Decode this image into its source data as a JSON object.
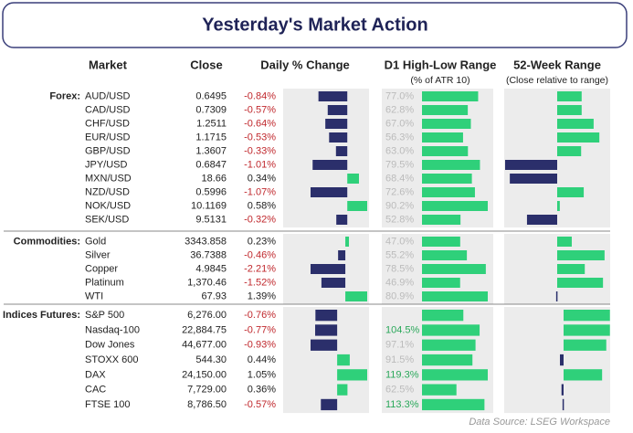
{
  "header": {
    "title": "Yesterday's Market Action"
  },
  "columns": {
    "market": "Market",
    "close": "Close",
    "daily": "Daily % Change",
    "d1": "D1 High-Low Range",
    "d1_sub": "(% of ATR 10)",
    "w52": "52-Week Range",
    "w52_sub": "(Close relative to range)"
  },
  "groups": [
    {
      "label": "Forex:",
      "rows": [
        {
          "market": "AUD/USD",
          "close": "0.6495",
          "change": -0.84,
          "change_label": "-0.84%",
          "d1": 77.0,
          "d1_label": "77.0%",
          "w52": 0.47
        },
        {
          "market": "CAD/USD",
          "close": "0.7309",
          "change": -0.57,
          "change_label": "-0.57%",
          "d1": 62.8,
          "d1_label": "62.8%",
          "w52": 0.47
        },
        {
          "market": "CHF/USD",
          "close": "1.2511",
          "change": -0.64,
          "change_label": "-0.64%",
          "d1": 67.0,
          "d1_label": "67.0%",
          "w52": 0.7
        },
        {
          "market": "EUR/USD",
          "close": "1.1715",
          "change": -0.53,
          "change_label": "-0.53%",
          "d1": 56.3,
          "d1_label": "56.3%",
          "w52": 0.81
        },
        {
          "market": "GBP/USD",
          "close": "1.3607",
          "change": -0.33,
          "change_label": "-0.33%",
          "d1": 63.0,
          "d1_label": "63.0%",
          "w52": 0.46
        },
        {
          "market": "JPY/USD",
          "close": "0.6847",
          "change": -1.01,
          "change_label": "-1.01%",
          "d1": 79.5,
          "d1_label": "79.5%",
          "w52": -1.0
        },
        {
          "market": "MXN/USD",
          "close": "18.66",
          "change": 0.34,
          "change_label": "0.34%",
          "d1": 68.4,
          "d1_label": "68.4%",
          "w52": -0.91
        },
        {
          "market": "NZD/USD",
          "close": "0.5996",
          "change": -1.07,
          "change_label": "-1.07%",
          "d1": 72.6,
          "d1_label": "72.6%",
          "w52": 0.51
        },
        {
          "market": "NOK/USD",
          "close": "10.1169",
          "change": 0.58,
          "change_label": "0.58%",
          "d1": 90.2,
          "d1_label": "90.2%",
          "w52": 0.05
        },
        {
          "market": "SEK/USD",
          "close": "9.5131",
          "change": -0.32,
          "change_label": "-0.32%",
          "d1": 52.8,
          "d1_label": "52.8%",
          "w52": -0.58
        }
      ]
    },
    {
      "label": "Commodities:",
      "rows": [
        {
          "market": "Gold",
          "close": "3343.858",
          "change": 0.23,
          "change_label": "0.23%",
          "d1": 47.0,
          "d1_label": "47.0%",
          "w52": 0.28
        },
        {
          "market": "Silver",
          "close": "36.7388",
          "change": -0.46,
          "change_label": "-0.46%",
          "d1": 55.2,
          "d1_label": "55.2%",
          "w52": 0.91
        },
        {
          "market": "Copper",
          "close": "4.9845",
          "change": -2.21,
          "change_label": "-2.21%",
          "d1": 78.5,
          "d1_label": "78.5%",
          "w52": 0.53
        },
        {
          "market": "Platinum",
          "close": "1,370.46",
          "change": -1.52,
          "change_label": "-1.52%",
          "d1": 46.9,
          "d1_label": "46.9%",
          "w52": 0.88
        },
        {
          "market": "WTI",
          "close": "67.93",
          "change": 1.39,
          "change_label": "1.39%",
          "d1": 80.9,
          "d1_label": "80.9%",
          "w52": -0.02
        }
      ]
    },
    {
      "label": "Indices Futures:",
      "rows": [
        {
          "market": "S&P 500",
          "close": "6,276.00",
          "change": -0.76,
          "change_label": "-0.76%",
          "d1": 75.0,
          "d1_label": null,
          "w52": 0.89
        },
        {
          "market": "Nasdaq-100",
          "close": "22,884.75",
          "change": -0.77,
          "change_label": "-0.77%",
          "d1": 104.5,
          "d1_label": "104.5%",
          "w52": 0.89
        },
        {
          "market": "Dow Jones",
          "close": "44,677.00",
          "change": -0.93,
          "change_label": "-0.93%",
          "d1": 97.1,
          "d1_label": "97.1%",
          "w52": 0.82
        },
        {
          "market": "STOXX 600",
          "close": "544.30",
          "change": 0.44,
          "change_label": "0.44%",
          "d1": 91.5,
          "d1_label": "91.5%",
          "w52": -0.07
        },
        {
          "market": "DAX",
          "close": "24,150.00",
          "change": 1.05,
          "change_label": "1.05%",
          "d1": 119.3,
          "d1_label": "119.3%",
          "w52": 0.74
        },
        {
          "market": "CAC",
          "close": "7,729.00",
          "change": 0.36,
          "change_label": "0.36%",
          "d1": 62.5,
          "d1_label": "62.5%",
          "w52": -0.04
        },
        {
          "market": "FTSE 100",
          "close": "8,786.50",
          "change": -0.57,
          "change_label": "-0.57%",
          "d1": 113.3,
          "d1_label": "113.3%",
          "w52": -0.02
        }
      ]
    }
  ],
  "footer": "Data Source: LSEG Workspace"
}
